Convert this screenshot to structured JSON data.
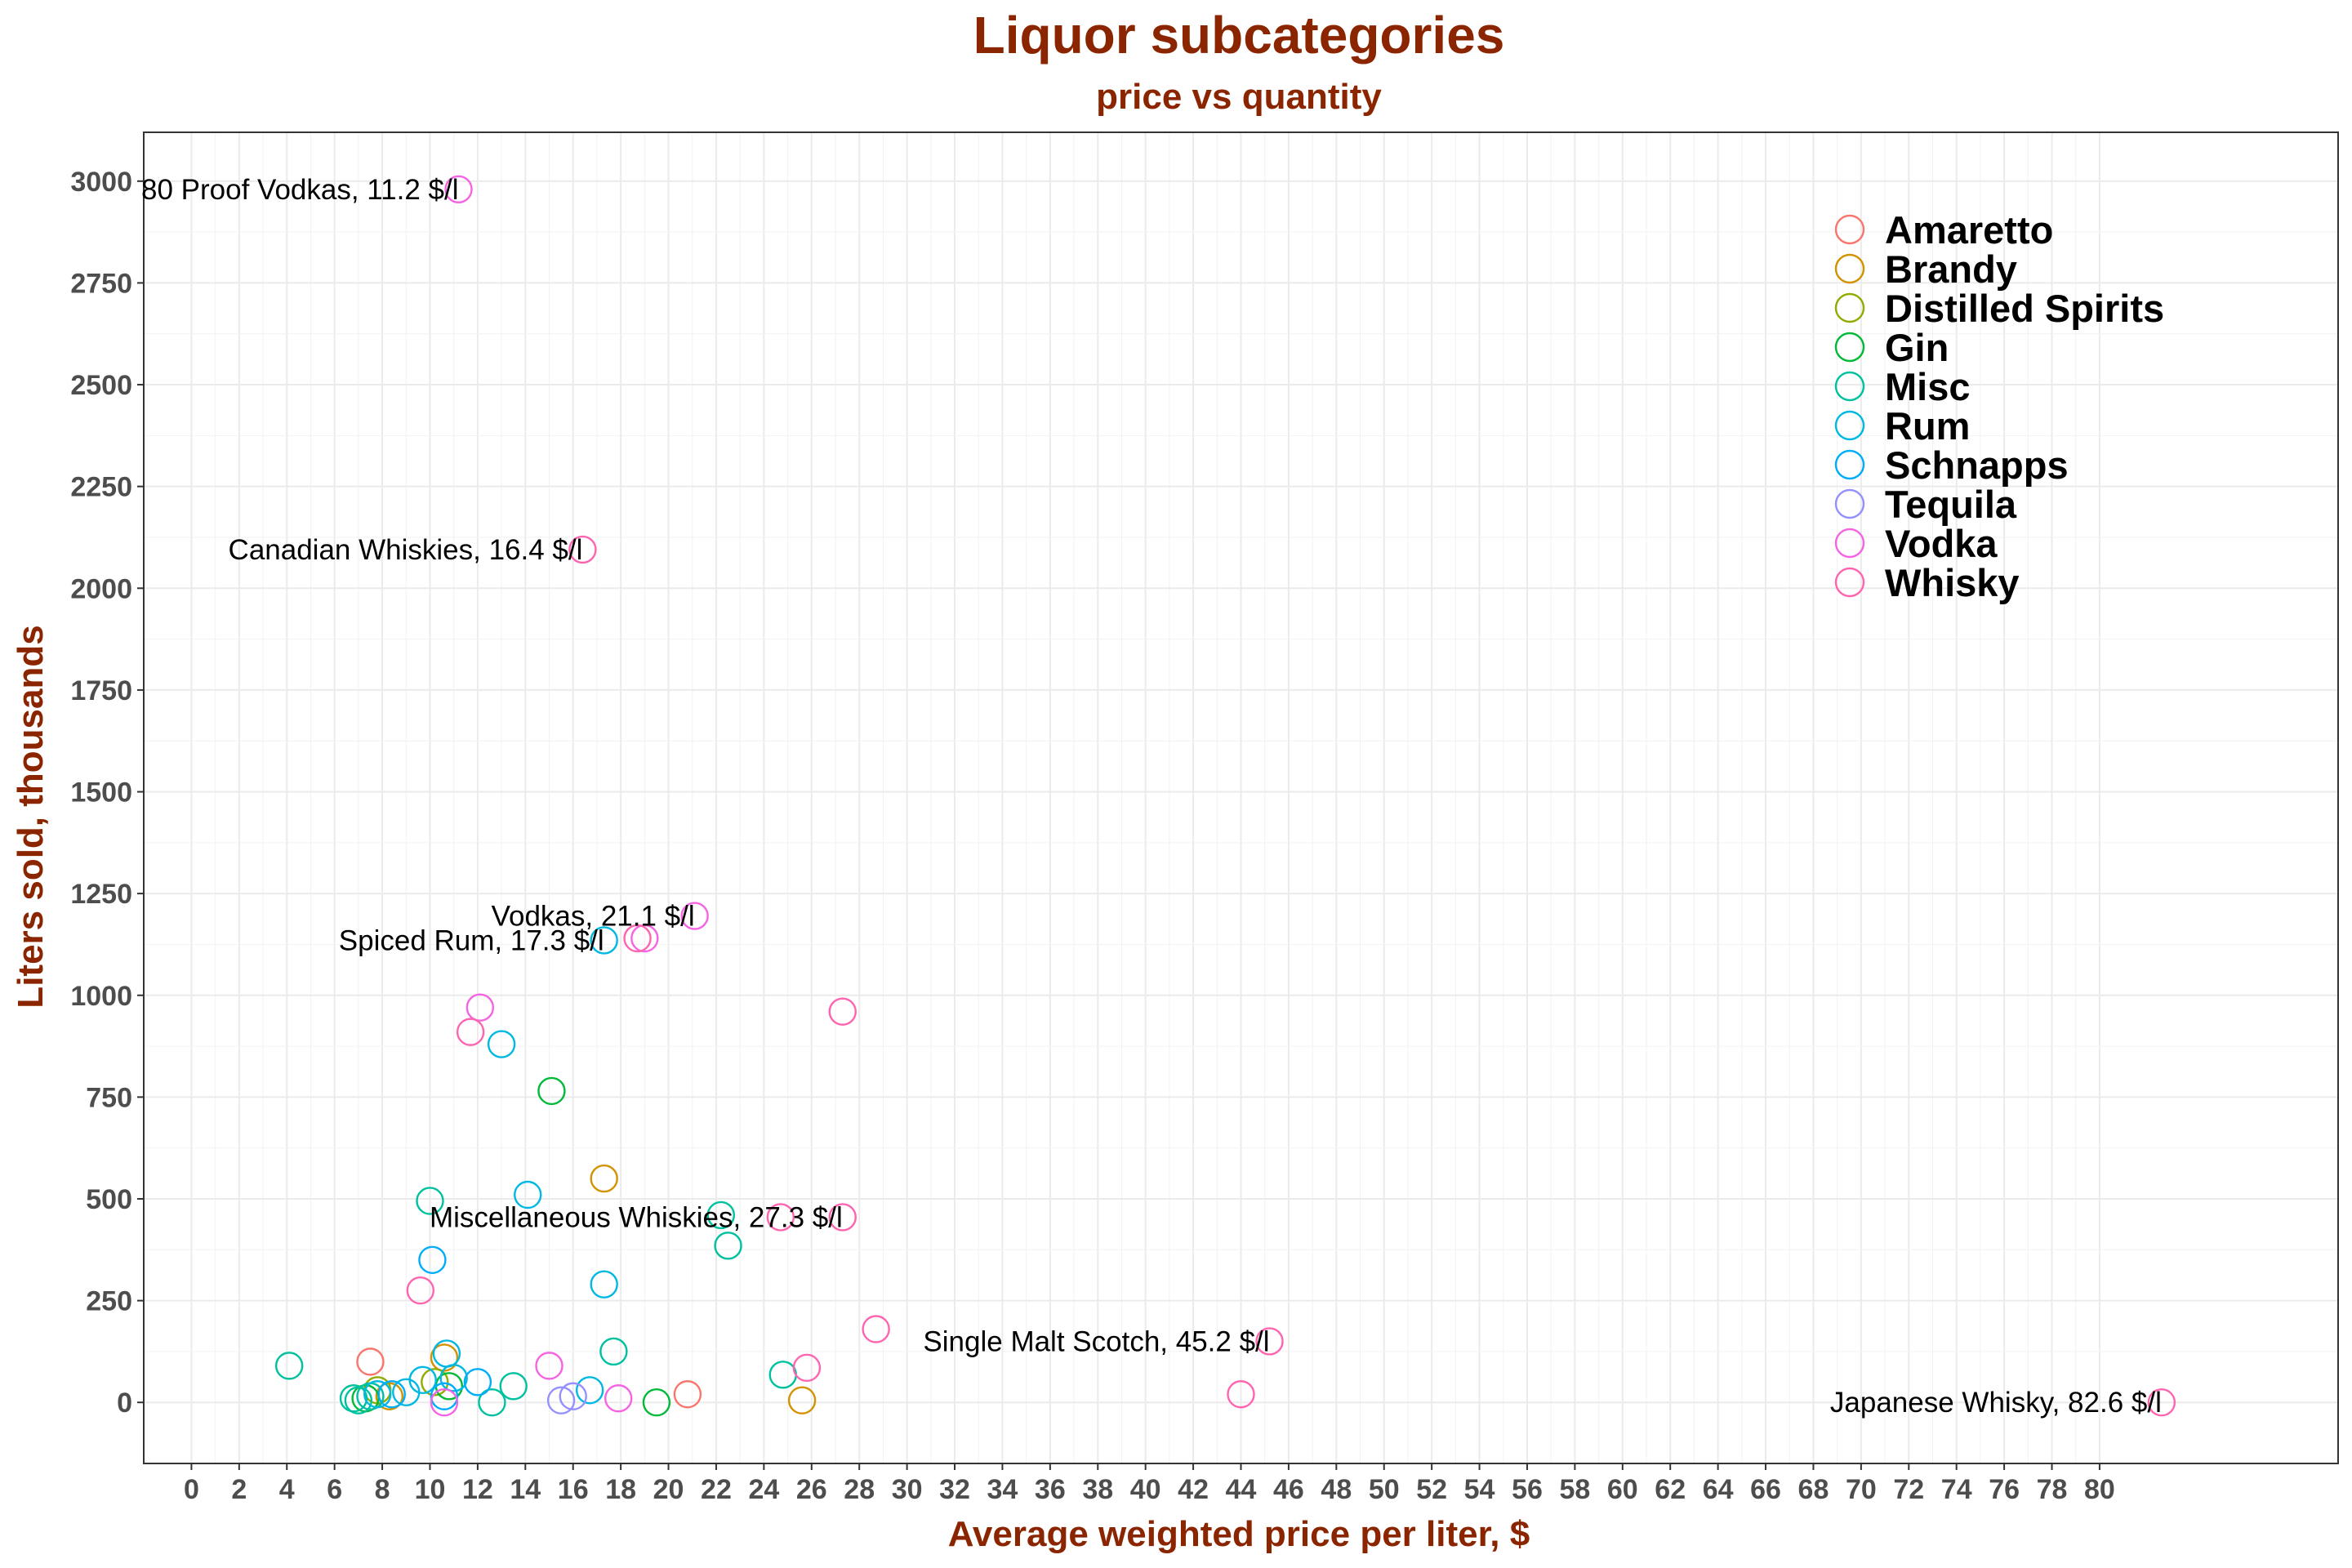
{
  "chart_data": {
    "type": "scatter",
    "title": "Liquor subcategories",
    "subtitle": "price vs quantity",
    "xlabel": "Average weighted price per liter, $",
    "ylabel": "Liters sold, thousands",
    "xlim": [
      -2,
      90
    ],
    "ylim": [
      -150,
      3120
    ],
    "x_ticks": [
      0,
      2,
      4,
      6,
      8,
      10,
      12,
      14,
      16,
      18,
      20,
      22,
      24,
      26,
      28,
      30,
      32,
      34,
      36,
      38,
      40,
      42,
      44,
      46,
      48,
      50,
      52,
      54,
      56,
      58,
      60,
      62,
      64,
      66,
      68,
      70,
      72,
      74,
      76,
      78,
      80
    ],
    "y_ticks": [
      0,
      250,
      500,
      750,
      1000,
      1250,
      1500,
      1750,
      2000,
      2250,
      2500,
      2750,
      3000
    ],
    "grid": true,
    "legend_position": "top-right",
    "series": [
      {
        "name": "Amaretto",
        "color": "#F8766D",
        "points": [
          [
            7.5,
            100
          ],
          [
            20.8,
            20
          ]
        ]
      },
      {
        "name": "Brandy",
        "color": "#D39200",
        "points": [
          [
            10.6,
            110
          ],
          [
            17.3,
            550
          ],
          [
            25.6,
            5
          ],
          [
            8.3,
            15
          ]
        ]
      },
      {
        "name": "Distilled Spirits",
        "color": "#93AA00",
        "points": [
          [
            10.2,
            50
          ],
          [
            7.8,
            30
          ]
        ]
      },
      {
        "name": "Gin",
        "color": "#00BA38",
        "points": [
          [
            15.1,
            765
          ],
          [
            19.5,
            0
          ],
          [
            10.8,
            40
          ],
          [
            7.3,
            10
          ]
        ]
      },
      {
        "name": "Misc",
        "color": "#00C19F",
        "points": [
          [
            4.1,
            90
          ],
          [
            10.0,
            495
          ],
          [
            22.2,
            460
          ],
          [
            22.5,
            385
          ],
          [
            17.7,
            125
          ],
          [
            24.8,
            68
          ],
          [
            13.5,
            40
          ],
          [
            12.6,
            0
          ],
          [
            7.0,
            5
          ],
          [
            7.5,
            15
          ],
          [
            6.8,
            10
          ]
        ]
      },
      {
        "name": "Rum",
        "color": "#00B9E3",
        "points": [
          [
            17.3,
            1135
          ],
          [
            13.0,
            880
          ],
          [
            14.1,
            510
          ],
          [
            17.3,
            290
          ],
          [
            16.7,
            30
          ],
          [
            10.7,
            120
          ],
          [
            11.0,
            60
          ],
          [
            9.7,
            55
          ],
          [
            9.0,
            25
          ],
          [
            7.8,
            20
          ]
        ]
      },
      {
        "name": "Schnapps",
        "color": "#00ADFA",
        "points": [
          [
            10.1,
            350
          ],
          [
            12.0,
            50
          ],
          [
            8.4,
            20
          ],
          [
            10.6,
            15
          ]
        ]
      },
      {
        "name": "Tequila",
        "color": "#9590FF",
        "points": [
          [
            16.0,
            15
          ],
          [
            15.5,
            5
          ]
        ]
      },
      {
        "name": "Vodka",
        "color": "#F564E3",
        "points": [
          [
            11.2,
            2980
          ],
          [
            19.0,
            1140
          ],
          [
            21.1,
            1195
          ],
          [
            12.1,
            970
          ],
          [
            15.0,
            90
          ],
          [
            17.9,
            10
          ],
          [
            10.6,
            0
          ]
        ]
      },
      {
        "name": "Whisky",
        "color": "#FF64B0",
        "points": [
          [
            16.4,
            2095
          ],
          [
            18.7,
            1140
          ],
          [
            27.3,
            960
          ],
          [
            11.7,
            910
          ],
          [
            9.6,
            275
          ],
          [
            24.7,
            455
          ],
          [
            27.3,
            455
          ],
          [
            28.7,
            180
          ],
          [
            25.8,
            85
          ],
          [
            45.2,
            150
          ],
          [
            44.0,
            20
          ],
          [
            82.6,
            0
          ]
        ]
      }
    ],
    "annotations": [
      {
        "text": "80 Proof Vodkas, 11.2 $/l",
        "x": 11.2,
        "y": 2980
      },
      {
        "text": "Canadian Whiskies, 16.4 $/l",
        "x": 16.4,
        "y": 2095
      },
      {
        "text": "Vodkas, 21.1 $/l",
        "x": 21.1,
        "y": 1195
      },
      {
        "text": "Spiced Rum, 17.3 $/l",
        "x": 17.3,
        "y": 1135
      },
      {
        "text": "Miscellaneous Whiskies, 27.3 $/l",
        "x": 27.3,
        "y": 455
      },
      {
        "text": "Single Malt Scotch, 45.2 $/l",
        "x": 45.2,
        "y": 150
      },
      {
        "text": "Japanese Whisky, 82.6 $/l",
        "x": 82.6,
        "y": 0
      }
    ]
  }
}
